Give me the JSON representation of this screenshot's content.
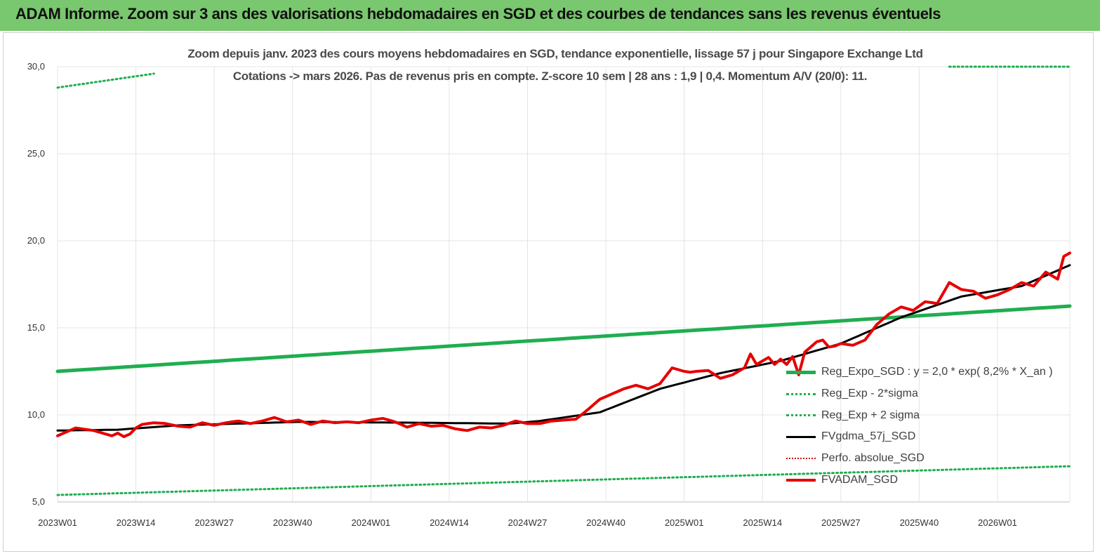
{
  "banner": {
    "title": "ADAM Informe. Zoom sur 3 ans des valorisations hebdomadaires en SGD et des courbes de tendances sans les revenus éventuels"
  },
  "chart_data": {
    "type": "line",
    "title_line1": "Zoom depuis janv. 2023 des cours moyens hebdomadaires en SGD, tendance exponentielle, lissage 57 j pour Singapore Exchange Ltd",
    "title_line2": "Cotations -> mars 2026. Pas de revenus pris en compte. Z-score 10 sem | 28 ans : 1,9 | 0,4. Momentum A/V (20/0): 11.",
    "xlabel": "",
    "ylabel": "",
    "ylim": [
      5,
      30
    ],
    "y_ticks": [
      "5,0",
      "10,0",
      "15,0",
      "20,0",
      "25,0",
      "30,0"
    ],
    "x_ticks": [
      "2023W01",
      "2023W14",
      "2023W27",
      "2023W40",
      "2024W01",
      "2024W14",
      "2024W27",
      "2024W40",
      "2025W01",
      "2025W14",
      "2025W27",
      "2025W40",
      "2026W01"
    ],
    "x_count": 169,
    "grid": true,
    "legend_position": "bottom-right",
    "series": [
      {
        "name": "Reg_Expo_SGD : y = 2,0 * exp( 8,2% *  X_an )",
        "color": "#1fae50",
        "style": "solid",
        "key_x": [
          0,
          168
        ],
        "key_y": [
          12.5,
          16.25
        ]
      },
      {
        "name": "Reg_Exp - 2*sigma",
        "color": "#1fae50",
        "style": "dotted",
        "key_x": [
          0,
          168
        ],
        "key_y": [
          5.4,
          7.05
        ]
      },
      {
        "name": "Reg_Exp + 2 sigma",
        "color": "#1fae50",
        "style": "dotted",
        "key_x": [
          0,
          16,
          148,
          168
        ],
        "key_y": [
          28.8,
          29.6,
          30.0,
          30.0
        ],
        "visible_ranges": [
          [
            0,
            16
          ],
          [
            148,
            168
          ]
        ]
      },
      {
        "name": "FVgdma_57j_SGD",
        "color": "#000000",
        "style": "solid",
        "key_x": [
          0,
          10,
          20,
          40,
          60,
          75,
          80,
          90,
          100,
          110,
          120,
          130,
          140,
          150,
          160,
          168
        ],
        "key_y": [
          9.1,
          9.15,
          9.4,
          9.6,
          9.55,
          9.5,
          9.65,
          10.15,
          11.5,
          12.4,
          13.1,
          14.1,
          15.6,
          16.8,
          17.4,
          18.6
        ]
      },
      {
        "name": "Perfo. absolue_SGD",
        "color": "#d00000",
        "style": "dotted",
        "key_x": [],
        "key_y": []
      },
      {
        "name": "FVADAM_SGD",
        "color": "#e60000",
        "style": "solid",
        "key_x": [
          0,
          3,
          6,
          9,
          10,
          11,
          12,
          13,
          14,
          16,
          18,
          20,
          22,
          24,
          26,
          28,
          30,
          32,
          34,
          36,
          38,
          40,
          42,
          44,
          46,
          48,
          50,
          52,
          54,
          56,
          58,
          60,
          62,
          64,
          66,
          68,
          70,
          72,
          74,
          76,
          78,
          80,
          82,
          84,
          86,
          88,
          90,
          92,
          94,
          96,
          98,
          100,
          102,
          104,
          105,
          106,
          108,
          110,
          112,
          114,
          115,
          116,
          118,
          119,
          120,
          121,
          122,
          123,
          124,
          126,
          127,
          128,
          129,
          130,
          132,
          134,
          136,
          138,
          140,
          142,
          144,
          146,
          148,
          150,
          152,
          153,
          154,
          156,
          158,
          160,
          162,
          164,
          166,
          167,
          168
        ],
        "key_y": [
          8.8,
          9.25,
          9.1,
          8.8,
          8.95,
          8.75,
          8.9,
          9.25,
          9.45,
          9.55,
          9.5,
          9.35,
          9.3,
          9.55,
          9.4,
          9.55,
          9.65,
          9.5,
          9.65,
          9.85,
          9.6,
          9.7,
          9.45,
          9.65,
          9.55,
          9.6,
          9.55,
          9.7,
          9.8,
          9.6,
          9.3,
          9.5,
          9.35,
          9.4,
          9.2,
          9.1,
          9.3,
          9.25,
          9.4,
          9.65,
          9.5,
          9.5,
          9.65,
          9.7,
          9.75,
          10.3,
          10.9,
          11.2,
          11.5,
          11.7,
          11.5,
          11.8,
          12.7,
          12.5,
          12.45,
          12.5,
          12.55,
          12.1,
          12.3,
          12.7,
          13.5,
          12.9,
          13.3,
          12.9,
          13.2,
          12.9,
          13.35,
          12.3,
          13.6,
          14.2,
          14.3,
          13.9,
          13.95,
          14.1,
          14.0,
          14.3,
          15.2,
          15.8,
          16.2,
          16.0,
          16.5,
          16.4,
          17.6,
          17.2,
          17.1,
          16.9,
          16.7,
          16.9,
          17.2,
          17.6,
          17.4,
          18.2,
          17.8,
          19.1,
          19.3
        ]
      }
    ]
  }
}
